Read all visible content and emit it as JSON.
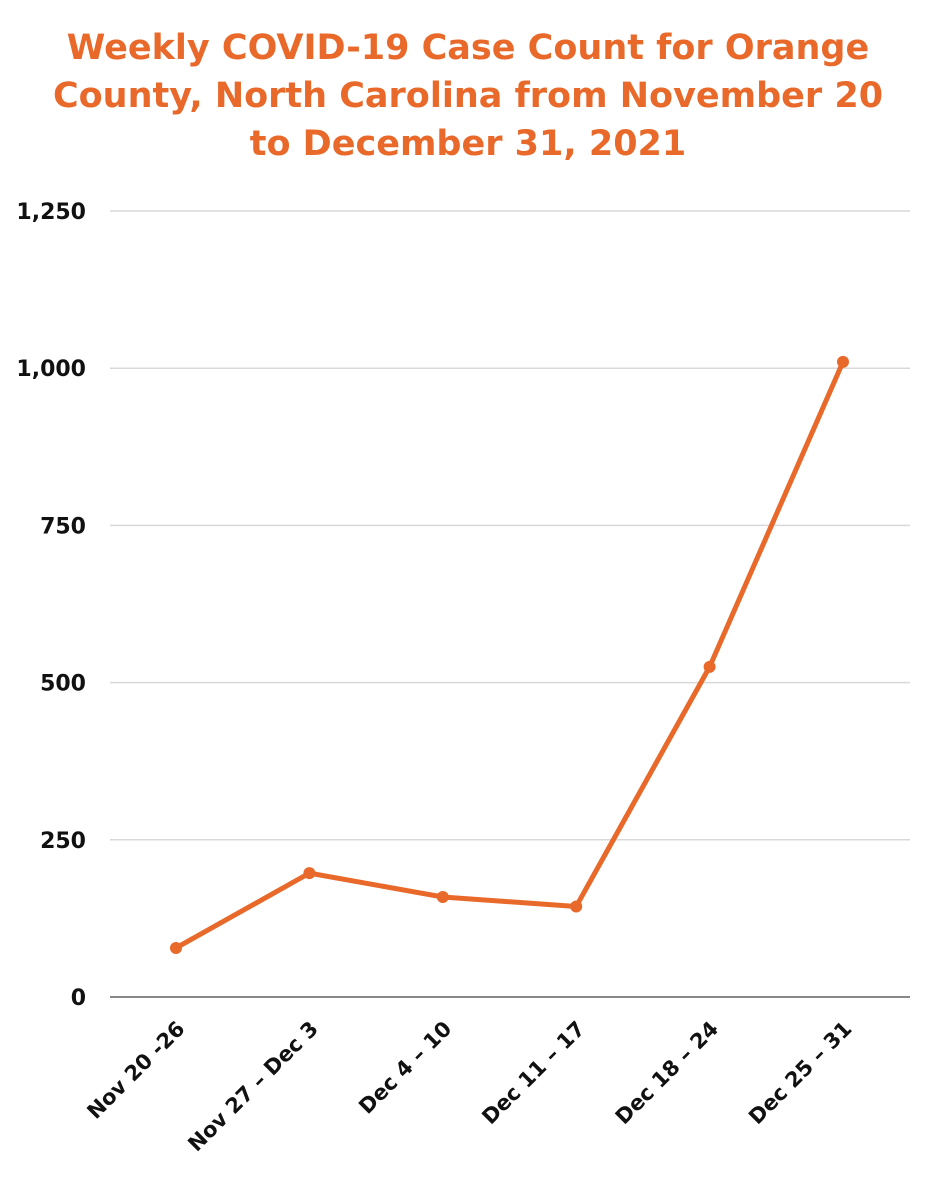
{
  "chart_data": {
    "type": "line",
    "title_lines": [
      "Weekly COVID-19 Case Count for Orange",
      "County, North Carolina from November 20",
      "to December 31, 2021"
    ],
    "categories": [
      "Nov 20 -26",
      "Nov 27 – Dec 3",
      "Dec 4 – 10",
      "Dec 11 – 17",
      "Dec 18 – 24",
      "Dec 25 – 31"
    ],
    "series": [
      {
        "values": [
          78,
          197,
          159,
          144,
          525,
          1010
        ]
      }
    ],
    "y_ticks": [
      {
        "value": 0,
        "label": "0"
      },
      {
        "value": 250,
        "label": "250"
      },
      {
        "value": 500,
        "label": "500"
      },
      {
        "value": 750,
        "label": "750"
      },
      {
        "value": 1000,
        "label": "1,000"
      },
      {
        "value": 1250,
        "label": "1,250"
      }
    ],
    "ylim": [
      0,
      1250
    ],
    "xlabel": "",
    "ylabel": "",
    "grid": true,
    "legend": "none",
    "colors": {
      "line": "#e8692a",
      "title": "#e8692a",
      "grid": "#d9d9d9",
      "axis": "#888888",
      "text": "#111111"
    }
  }
}
